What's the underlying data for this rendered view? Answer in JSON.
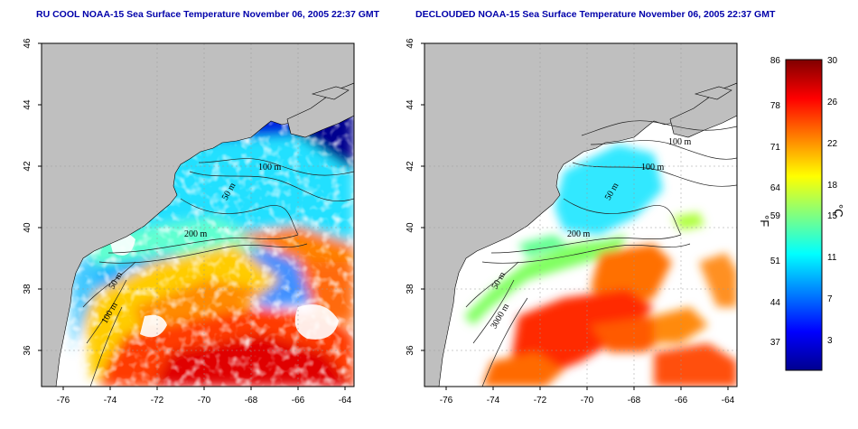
{
  "panels": [
    {
      "id": "left",
      "title": "RU COOL NOAA-15 Sea Surface Temperature November 06, 2005 22:37 GMT",
      "contour_labels": [
        "100 m",
        "50 m",
        "200 m",
        "50 m",
        "100 m"
      ],
      "x_ticks": [
        "-76",
        "-74",
        "-72",
        "-70",
        "-68",
        "-66",
        "-64"
      ],
      "y_ticks": [
        "46",
        "44",
        "42",
        "40",
        "38",
        "36"
      ]
    },
    {
      "id": "right",
      "title": "DECLOUDED NOAA-15 Sea Surface Temperature November 06, 2005 22:37 GMT",
      "contour_labels": [
        "100 m",
        "100 m",
        "50 m",
        "200 m",
        "50 m",
        "3000 m"
      ],
      "x_ticks": [
        "-76",
        "-74",
        "-72",
        "-70",
        "-68",
        "-66",
        "-64"
      ],
      "y_ticks": [
        "46",
        "44",
        "42",
        "40",
        "38",
        "36"
      ]
    }
  ],
  "colorbar": {
    "fahrenheit_ticks": [
      "86",
      "78",
      "71",
      "64",
      "59",
      "51",
      "44",
      "37"
    ],
    "celsius_ticks": [
      "30",
      "26",
      "22",
      "18",
      "15",
      "11",
      "7",
      "3"
    ],
    "fahrenheit_label": "°F",
    "celsius_label": "°C",
    "colors": [
      "#00008f",
      "#0000ff",
      "#0080ff",
      "#00ffff",
      "#80ff80",
      "#ffff00",
      "#ff8000",
      "#ff0000",
      "#800000"
    ]
  },
  "colors": {
    "land": "#bfbfbf",
    "nodata": "#ffffff",
    "title": "#0000aa"
  }
}
